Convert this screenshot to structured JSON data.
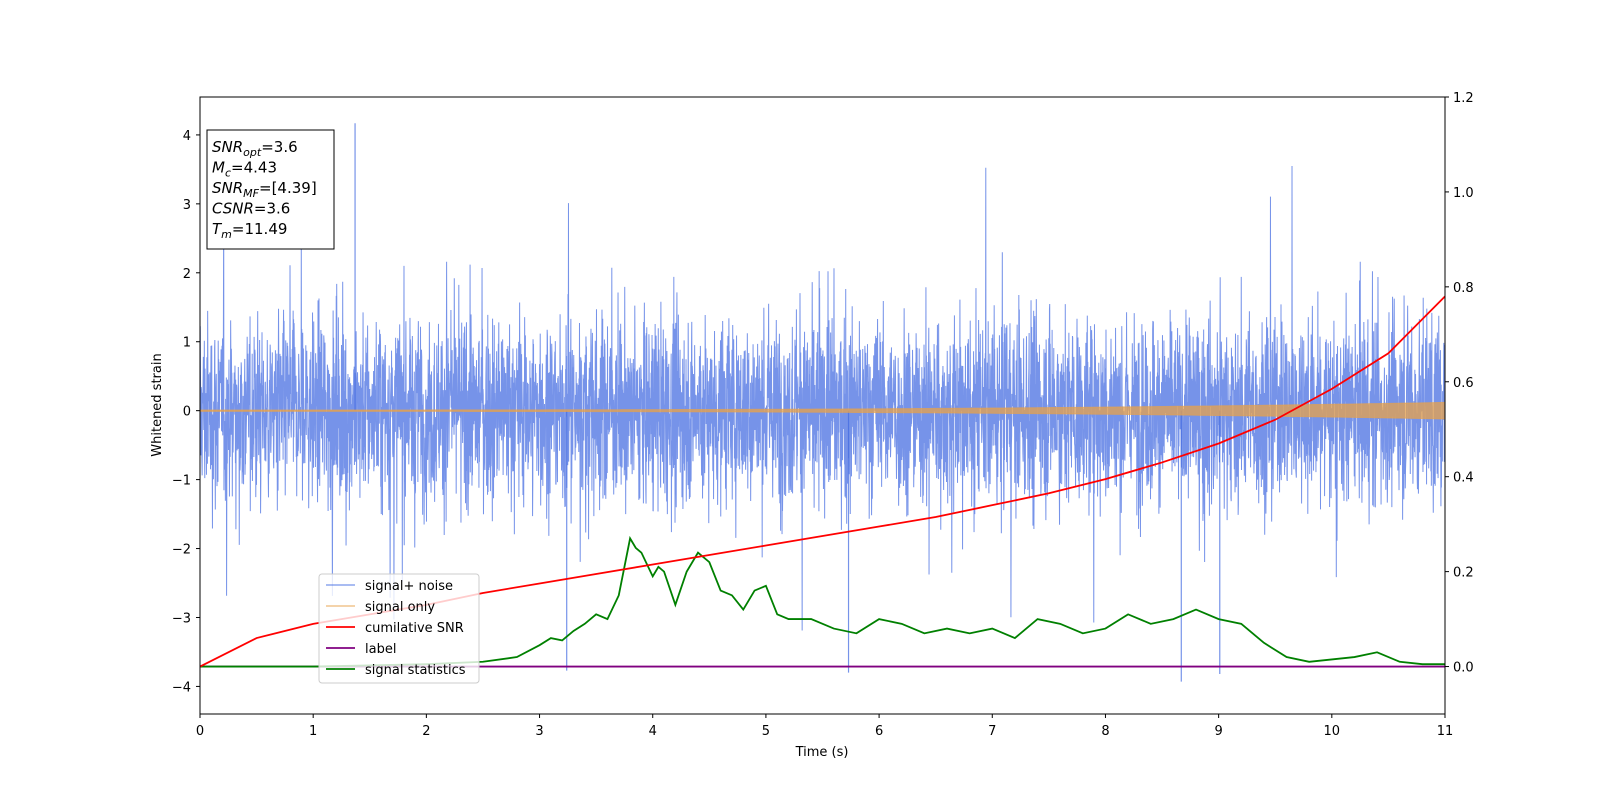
{
  "chart_data": {
    "type": "line",
    "xlabel": "Time (s)",
    "ylabel": "Whitened strain",
    "ylabel_right": "",
    "xlim": [
      0,
      11
    ],
    "ylim": [
      -4.4,
      4.55
    ],
    "ylim_right": [
      -0.1,
      1.2
    ],
    "x_ticks": [
      "0",
      "1",
      "2",
      "3",
      "4",
      "5",
      "6",
      "7",
      "8",
      "9",
      "10",
      "11"
    ],
    "y_ticks_left": [
      "4",
      "3",
      "2",
      "1",
      "0",
      "−1",
      "−2",
      "−3",
      "−4"
    ],
    "y_ticks_right": [
      "0.0",
      "0.2",
      "0.4",
      "0.6",
      "0.8",
      "1.0",
      "1.2"
    ],
    "grid": false,
    "legend_position": "lower-left",
    "info_box": {
      "position": "top-left",
      "lines": [
        {
          "name": "SNR",
          "sub": "opt",
          "value": "=3.6"
        },
        {
          "name": "M",
          "sub": "c",
          "value": "=4.43"
        },
        {
          "name": "SNR",
          "sub": "MF",
          "value": "=[4.39]"
        },
        {
          "name": "CSNR",
          "sub": "",
          "value": "=3.6"
        },
        {
          "name": "T",
          "sub": "m",
          "value": "=11.49"
        }
      ]
    },
    "series": [
      {
        "name": "signal+ noise",
        "color": "#4169e1",
        "axis": "left",
        "envelope_amplitude": 2.3,
        "spike_max": 4.17,
        "spike_min": -3.93
      },
      {
        "name": "signal only",
        "color": "#e8a24a",
        "axis": "left",
        "amplitude_start": 0.01,
        "amplitude_end": 0.12
      },
      {
        "name": "cumilative SNR",
        "color": "#ff0000",
        "axis": "right",
        "x": [
          0,
          0.5,
          1,
          1.5,
          2,
          2.5,
          3,
          3.5,
          4,
          4.5,
          5,
          5.5,
          6,
          6.5,
          7,
          7.5,
          8,
          8.5,
          9,
          9.5,
          10,
          10.5,
          11
        ],
        "y": [
          0.0,
          0.06,
          0.09,
          0.11,
          0.13,
          0.155,
          0.175,
          0.195,
          0.215,
          0.235,
          0.255,
          0.275,
          0.295,
          0.315,
          0.34,
          0.365,
          0.395,
          0.43,
          0.47,
          0.52,
          0.585,
          0.66,
          0.78
        ]
      },
      {
        "name": "label",
        "color": "#800080",
        "axis": "right",
        "x": [
          0,
          11
        ],
        "y": [
          0,
          0
        ]
      },
      {
        "name": "signal statistics",
        "color": "#008000",
        "axis": "right",
        "x": [
          0,
          1,
          2,
          2.5,
          2.8,
          3.0,
          3.1,
          3.2,
          3.3,
          3.4,
          3.5,
          3.6,
          3.7,
          3.8,
          3.85,
          3.9,
          4.0,
          4.05,
          4.1,
          4.2,
          4.3,
          4.4,
          4.5,
          4.6,
          4.7,
          4.8,
          4.9,
          5.0,
          5.1,
          5.2,
          5.4,
          5.6,
          5.8,
          6.0,
          6.2,
          6.4,
          6.6,
          6.8,
          7.0,
          7.2,
          7.4,
          7.6,
          7.8,
          8.0,
          8.2,
          8.4,
          8.6,
          8.8,
          9.0,
          9.2,
          9.4,
          9.6,
          9.8,
          10.0,
          10.2,
          10.4,
          10.6,
          10.8,
          11
        ],
        "y": [
          0.0,
          0.0,
          0.005,
          0.01,
          0.02,
          0.045,
          0.06,
          0.055,
          0.075,
          0.09,
          0.11,
          0.1,
          0.15,
          0.27,
          0.25,
          0.24,
          0.19,
          0.21,
          0.2,
          0.13,
          0.2,
          0.24,
          0.22,
          0.16,
          0.15,
          0.12,
          0.16,
          0.17,
          0.11,
          0.1,
          0.1,
          0.08,
          0.07,
          0.1,
          0.09,
          0.07,
          0.08,
          0.07,
          0.08,
          0.06,
          0.1,
          0.09,
          0.07,
          0.08,
          0.11,
          0.09,
          0.1,
          0.12,
          0.1,
          0.09,
          0.05,
          0.02,
          0.01,
          0.015,
          0.02,
          0.03,
          0.01,
          0.005,
          0.005
        ]
      }
    ]
  }
}
